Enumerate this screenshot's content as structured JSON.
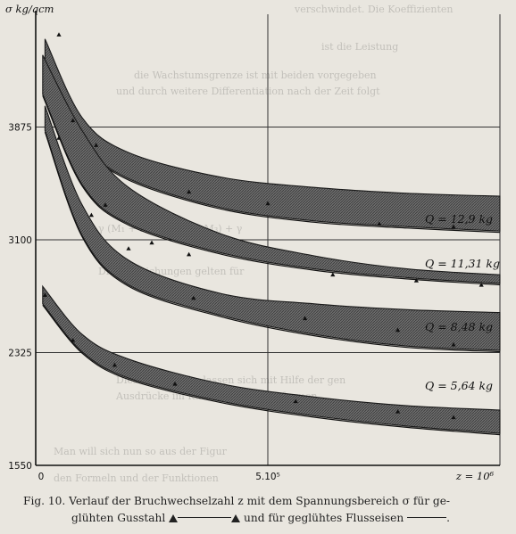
{
  "chart_data": {
    "type": "line",
    "ylabel": "σ kg/qcm",
    "xlabel": "z = 10⁶",
    "y_ticks": [
      "3875",
      "3100",
      "2325",
      "1550"
    ],
    "x_ticks": [
      "0",
      "5.10⁵"
    ],
    "ylim": [
      1550,
      4650
    ],
    "xlim": [
      0,
      1000000
    ],
    "grid": true,
    "series": [
      {
        "name": "Q = 12,9 kg",
        "band_upper": [
          [
            20000,
            4480
          ],
          [
            100000,
            3940
          ],
          [
            200000,
            3700
          ],
          [
            400000,
            3530
          ],
          [
            600000,
            3460
          ],
          [
            800000,
            3420
          ],
          [
            1000000,
            3400
          ]
        ],
        "band_lower": [
          [
            20000,
            4140
          ],
          [
            100000,
            3760
          ],
          [
            200000,
            3520
          ],
          [
            400000,
            3320
          ],
          [
            600000,
            3230
          ],
          [
            800000,
            3190
          ],
          [
            1000000,
            3160
          ]
        ],
        "points": [
          [
            50000,
            4510
          ],
          [
            70000,
            3950
          ],
          [
            130000,
            3750
          ],
          [
            330000,
            3430
          ],
          [
            500000,
            3350
          ],
          [
            740000,
            3210
          ],
          [
            900000,
            3190
          ]
        ]
      },
      {
        "name": "Q = 11,31 kg",
        "band_upper": [
          [
            15000,
            4370
          ],
          [
            100000,
            3850
          ],
          [
            200000,
            3460
          ],
          [
            400000,
            3140
          ],
          [
            600000,
            2990
          ],
          [
            800000,
            2900
          ],
          [
            1000000,
            2860
          ]
        ],
        "band_lower": [
          [
            15000,
            4100
          ],
          [
            100000,
            3480
          ],
          [
            200000,
            3210
          ],
          [
            400000,
            3010
          ],
          [
            600000,
            2900
          ],
          [
            800000,
            2840
          ],
          [
            1000000,
            2800
          ]
        ],
        "points": [
          [
            80000,
            3920
          ],
          [
            150000,
            3340
          ],
          [
            250000,
            3080
          ],
          [
            330000,
            3000
          ],
          [
            640000,
            2860
          ],
          [
            820000,
            2820
          ],
          [
            960000,
            2790
          ]
        ]
      },
      {
        "name": "Q = 8,48 kg",
        "band_upper": [
          [
            20000,
            4020
          ],
          [
            100000,
            3340
          ],
          [
            200000,
            2960
          ],
          [
            400000,
            2730
          ],
          [
            600000,
            2660
          ],
          [
            800000,
            2620
          ],
          [
            1000000,
            2600
          ]
        ],
        "band_lower": [
          [
            20000,
            3850
          ],
          [
            100000,
            3130
          ],
          [
            200000,
            2790
          ],
          [
            400000,
            2580
          ],
          [
            600000,
            2450
          ],
          [
            800000,
            2370
          ],
          [
            1000000,
            2340
          ]
        ],
        "points": [
          [
            50000,
            3800
          ],
          [
            120000,
            3270
          ],
          [
            200000,
            3040
          ],
          [
            340000,
            2700
          ],
          [
            580000,
            2560
          ],
          [
            780000,
            2480
          ],
          [
            900000,
            2380
          ]
        ]
      },
      {
        "name": "Q = 5,64 kg",
        "band_upper": [
          [
            15000,
            2780
          ],
          [
            100000,
            2450
          ],
          [
            200000,
            2280
          ],
          [
            400000,
            2110
          ],
          [
            600000,
            2020
          ],
          [
            800000,
            1960
          ],
          [
            1000000,
            1930
          ]
        ],
        "band_lower": [
          [
            15000,
            2660
          ],
          [
            100000,
            2330
          ],
          [
            200000,
            2150
          ],
          [
            400000,
            1990
          ],
          [
            600000,
            1890
          ],
          [
            800000,
            1820
          ],
          [
            1000000,
            1770
          ]
        ],
        "points": [
          [
            20000,
            2720
          ],
          [
            80000,
            2410
          ],
          [
            170000,
            2240
          ],
          [
            300000,
            2110
          ],
          [
            560000,
            1990
          ],
          [
            780000,
            1920
          ],
          [
            900000,
            1880
          ]
        ]
      }
    ]
  },
  "caption": {
    "text": "Fig. 10. Verlauf der Bruchwechselzahl z mit dem Spannungsbereich",
    "sigma": "σ",
    "text2": "für ge-",
    "line2_a": "glühten Gusstahl",
    "line2_b": "und für geglühtes Flusseisen",
    "line2_end": "."
  },
  "colors": {
    "paper": "#e9e6df",
    "band": "#5a5a5a",
    "ink": "#1c1c1c"
  }
}
